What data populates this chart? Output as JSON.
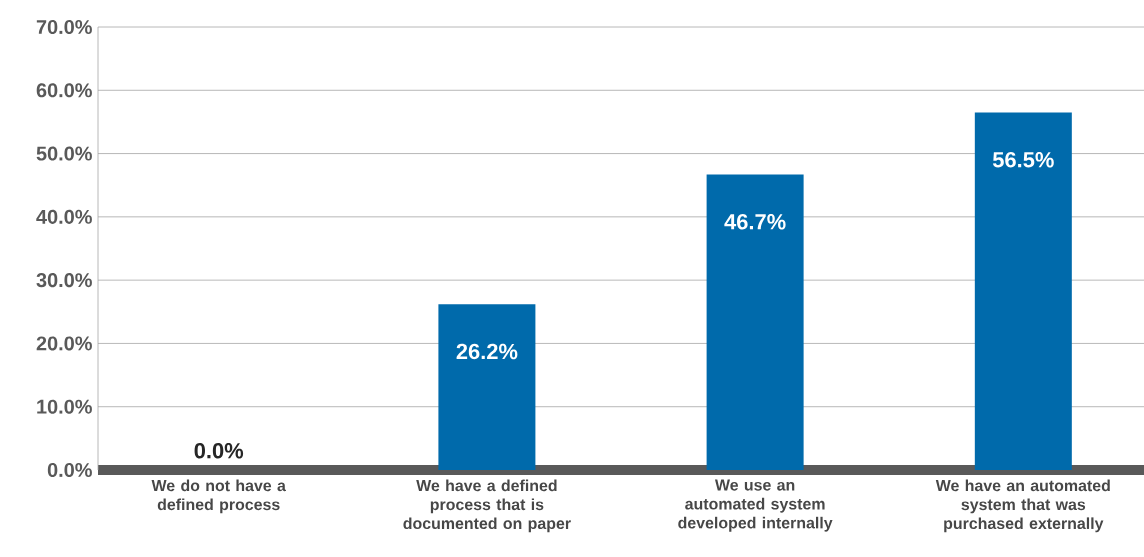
{
  "chart_data": {
    "type": "bar",
    "categories": [
      "We do not have a defined process",
      "We have a defined process that is documented on paper",
      "We use an automated system developed internally",
      "We have an automated system that was purchased externally"
    ],
    "values": [
      0.0,
      26.2,
      46.7,
      56.5
    ],
    "color": "#006aab",
    "ylim": [
      0,
      70
    ],
    "yticks": [
      {
        "value": 0,
        "label": "0.0%"
      },
      {
        "value": 10,
        "label": "10.0%"
      },
      {
        "value": 20,
        "label": "20.0%"
      },
      {
        "value": 30,
        "label": "30.0%"
      },
      {
        "value": 40,
        "label": "40.0%"
      },
      {
        "value": 50,
        "label": "50.0%"
      },
      {
        "value": 60,
        "label": "60.0%"
      },
      {
        "value": 70,
        "label": "70.0%"
      }
    ],
    "value_labels": [
      "0.0%",
      "26.2%",
      "46.7%",
      "56.5%"
    ],
    "grid": "y"
  }
}
